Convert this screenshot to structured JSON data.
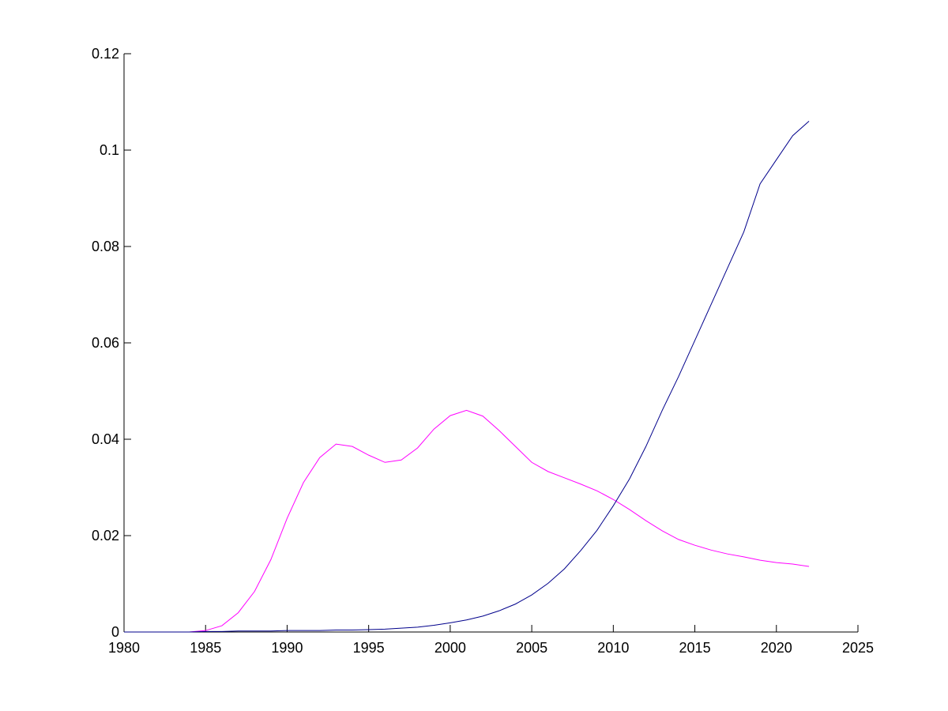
{
  "chart_data": {
    "type": "line",
    "x": [
      1980,
      1981,
      1982,
      1983,
      1984,
      1985,
      1986,
      1987,
      1988,
      1989,
      1990,
      1991,
      1992,
      1993,
      1994,
      1995,
      1996,
      1997,
      1998,
      1999,
      2000,
      2001,
      2002,
      2003,
      2004,
      2005,
      2006,
      2007,
      2008,
      2009,
      2010,
      2011,
      2012,
      2013,
      2014,
      2015,
      2016,
      2017,
      2018,
      2019,
      2020,
      2021,
      2022
    ],
    "series": [
      {
        "color": "#ff00ff",
        "values": [
          0,
          0,
          0,
          0,
          0,
          0.0003,
          0.0013,
          0.004,
          0.0084,
          0.015,
          0.0236,
          0.031,
          0.0362,
          0.039,
          0.0385,
          0.0367,
          0.0352,
          0.0357,
          0.0382,
          0.0421,
          0.0449,
          0.046,
          0.0448,
          0.0418,
          0.0385,
          0.0352,
          0.0333,
          0.032,
          0.0307,
          0.0293,
          0.0275,
          0.0254,
          0.0231,
          0.021,
          0.0192,
          0.018,
          0.017,
          0.0162,
          0.0156,
          0.0149,
          0.0144,
          0.0141,
          0.0136
        ]
      },
      {
        "color": "#00008b",
        "values": [
          0,
          0,
          0,
          0,
          0,
          0.0001,
          0.0001,
          0.0002,
          0.0002,
          0.0002,
          0.0003,
          0.0003,
          0.0003,
          0.0004,
          0.0004,
          0.0005,
          0.0006,
          0.0008,
          0.001,
          0.0014,
          0.0019,
          0.0025,
          0.0033,
          0.0044,
          0.0058,
          0.0077,
          0.0101,
          0.0131,
          0.0169,
          0.0211,
          0.0262,
          0.0318,
          0.0385,
          0.046,
          0.053,
          0.0605,
          0.068,
          0.0755,
          0.083,
          0.093,
          0.098,
          0.103,
          0.106
        ]
      }
    ],
    "xlim": [
      1980,
      2025
    ],
    "xticks": [
      1980,
      1985,
      1990,
      1995,
      2000,
      2005,
      2010,
      2015,
      2020,
      2025
    ],
    "ylim": [
      0,
      0.12
    ],
    "yticks": [
      0,
      0.02,
      0.04,
      0.06,
      0.08,
      0.1,
      0.12
    ]
  }
}
